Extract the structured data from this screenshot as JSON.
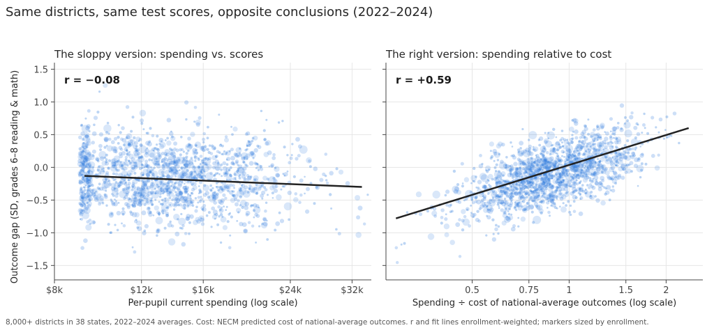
{
  "figure": {
    "suptitle": "Same districts, same test scores, opposite conclusions (2022–2024)",
    "ylabel": "Outcome gap (SD, grades 6–8 reading & math)",
    "footnote": "8,000+ districts in 38 states, 2022–2024 averages. Cost: NECM predicted cost of national-average outcomes. r and fit lines enrollment-weighted; markers sized by enrollment."
  },
  "chart_data": [
    {
      "type": "scatter",
      "title": "The sloppy version: spending vs. scores",
      "xlabel": "Per-pupil current spending (log scale)",
      "x_scale": "log",
      "xlim": [
        8000,
        35000
      ],
      "ylim": [
        -1.72,
        1.6
      ],
      "xticks": [
        {
          "value": 8000,
          "label": "$8k"
        },
        {
          "value": 12000,
          "label": "$12k"
        },
        {
          "value": 16000,
          "label": "$16k"
        },
        {
          "value": 24000,
          "label": "$24k"
        },
        {
          "value": 32000,
          "label": "$32k"
        }
      ],
      "yticks": [
        {
          "value": 1.5,
          "label": "1.5"
        },
        {
          "value": 1.0,
          "label": "1.0"
        },
        {
          "value": 0.5,
          "label": "0.5"
        },
        {
          "value": 0.0,
          "label": "0.0"
        },
        {
          "value": -0.5,
          "label": "−0.5"
        },
        {
          "value": -1.0,
          "label": "−1.0"
        },
        {
          "value": -1.5,
          "label": "−1.5"
        }
      ],
      "annotation": "r = −0.08",
      "grid": true,
      "fit_line": {
        "x": [
          9200,
          33500
        ],
        "y": [
          -0.13,
          -0.3
        ]
      },
      "point_cloud": {
        "n": 1500,
        "x_median": 13500,
        "x_log_sd": 0.32,
        "x_range": [
          9000,
          34500
        ],
        "slope_per_log": -0.05,
        "y_sd": 0.37,
        "y_range": [
          -1.55,
          1.42
        ]
      },
      "color": "#2f7bdc"
    },
    {
      "type": "scatter",
      "title": "The right version: spending relative to cost",
      "xlabel": "Spending ÷ cost of national-average outcomes (log scale)",
      "x_scale": "log",
      "xlim": [
        0.27,
        2.6
      ],
      "ylim": [
        -1.72,
        1.6
      ],
      "xticks": [
        {
          "value": 0.5,
          "label": "0.5"
        },
        {
          "value": 0.75,
          "label": "0.75"
        },
        {
          "value": 1.0,
          "label": "1"
        },
        {
          "value": 1.5,
          "label": "1.5"
        },
        {
          "value": 2.0,
          "label": "2"
        }
      ],
      "annotation": "r = +0.59",
      "grid": true,
      "fit_line": {
        "x": [
          0.29,
          2.35
        ],
        "y": [
          -0.78,
          0.6
        ]
      },
      "point_cloud": {
        "n": 1500,
        "x_median": 0.88,
        "x_log_sd": 0.33,
        "x_range": [
          0.29,
          2.45
        ],
        "slope_per_log": 0.66,
        "y_sd": 0.28,
        "y_range": [
          -1.5,
          1.42
        ]
      },
      "color": "#2f7bdc"
    }
  ]
}
